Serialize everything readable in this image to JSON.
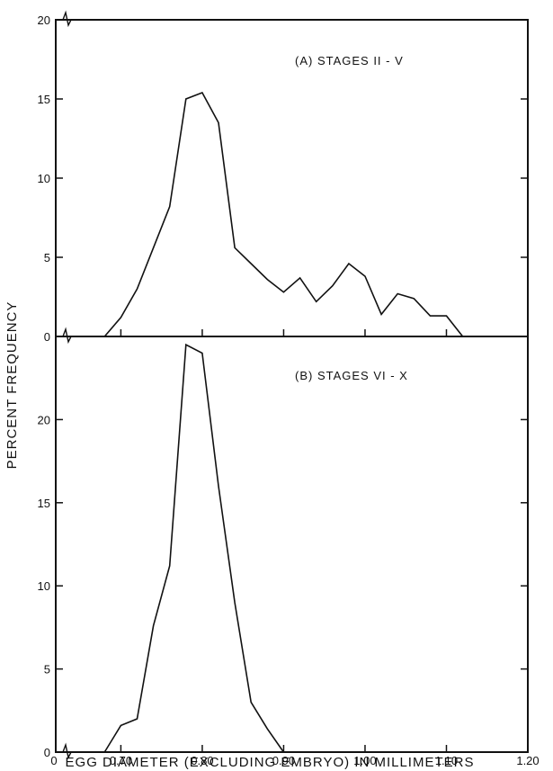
{
  "chart_data": [
    {
      "type": "line",
      "panel_label": "(A)  STAGES  II - V",
      "xlim": [
        0.62,
        1.2
      ],
      "ylim": [
        0,
        20
      ],
      "y_ticks": [
        0,
        5,
        10,
        15,
        20
      ],
      "y_tick_labels": [
        "0",
        "5",
        "10",
        "15",
        "20"
      ],
      "x": [
        0.68,
        0.7,
        0.72,
        0.74,
        0.76,
        0.78,
        0.8,
        0.82,
        0.84,
        0.86,
        0.88,
        0.9,
        0.92,
        0.94,
        0.96,
        0.98,
        1.0,
        1.02,
        1.04,
        1.06,
        1.08,
        1.1,
        1.12
      ],
      "values": [
        0,
        1.2,
        3.0,
        5.6,
        8.2,
        15.0,
        15.4,
        13.5,
        5.6,
        4.6,
        3.6,
        2.8,
        3.7,
        2.2,
        3.2,
        4.6,
        3.8,
        1.4,
        2.7,
        2.4,
        1.3,
        1.3,
        0
      ]
    },
    {
      "type": "line",
      "panel_label": "(B)  STAGES  VI - X",
      "xlim": [
        0.62,
        1.2
      ],
      "ylim": [
        0,
        25
      ],
      "y_ticks": [
        0,
        5,
        10,
        15,
        20
      ],
      "y_tick_labels": [
        "0",
        "5",
        "10",
        "15",
        "20"
      ],
      "x": [
        0.68,
        0.7,
        0.72,
        0.74,
        0.76,
        0.78,
        0.8,
        0.82,
        0.84,
        0.86,
        0.88,
        0.9
      ],
      "values": [
        0,
        1.6,
        2.0,
        7.6,
        11.2,
        24.5,
        24.0,
        16.0,
        9.0,
        3.0,
        1.4,
        0
      ]
    }
  ],
  "shared": {
    "y_axis_label": "PERCENT FREQUENCY",
    "x_axis_label": "EGG DIAMETER (EXCLUDING EMBRYO) IN MILLIMETERS",
    "x_ticks": [
      0.7,
      0.8,
      0.9,
      1.0,
      1.1,
      1.2
    ],
    "x_tick_labels": [
      "0.70",
      "0.80",
      "0.90",
      "1.00",
      "1.10",
      "1.20"
    ],
    "x_origin_label": "0"
  }
}
